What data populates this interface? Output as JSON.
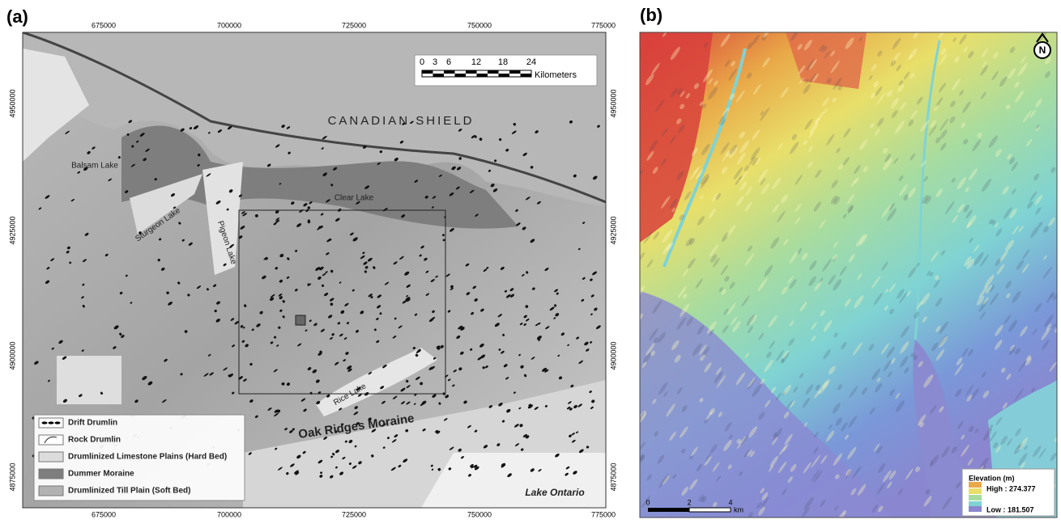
{
  "panel_a": {
    "label": "(a)",
    "x_ticks": [
      "675000",
      "700000",
      "725000",
      "750000",
      "775000"
    ],
    "y_ticks": [
      "4950000",
      "4925000",
      "4900000",
      "4875000"
    ],
    "scale_bar": {
      "ticks": [
        "0",
        "3",
        "6",
        "12",
        "18",
        "24"
      ],
      "unit": "Kilometers"
    },
    "region_label": "CANADIAN SHIELD",
    "place_labels": [
      "Balsam Lake",
      "Sturgeon Lake",
      "Pigeon Lake",
      "Clear Lake",
      "Rice Lake",
      "Oak Ridges Moraine",
      "Lake Ontario"
    ],
    "legend": [
      "Drift Drumlin",
      "Rock Drumlin",
      "Drumlinized Limestone Plains (Hard Bed)",
      "Dummer Moraine",
      "Drumlinized Till Plain (Soft Bed)"
    ]
  },
  "panel_b": {
    "label": "(b)",
    "north": "N",
    "legend": {
      "title": "Elevation (m)",
      "high": "High : 274.377",
      "low": "Low : 181.507"
    },
    "scale_bar": {
      "ticks": [
        "0",
        "2",
        "4"
      ],
      "unit": "km"
    }
  }
}
